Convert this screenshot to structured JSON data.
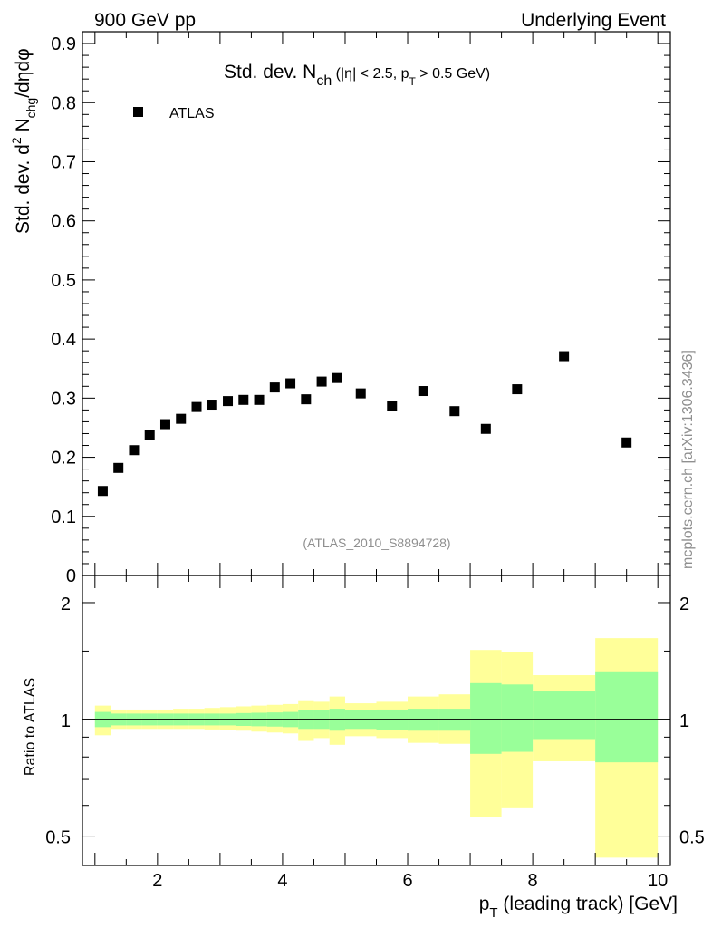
{
  "header": {
    "left": "900 GeV pp",
    "right": "Underlying Event"
  },
  "side_label": "mcplots.cern.ch [arXiv:1306.3436]",
  "chart_data": {
    "type": "scatter",
    "title": "Std. dev. N_ch (|η| < 2.5, p_T > 0.5 GeV)",
    "title_parts": {
      "main": "Std. dev. N",
      "main_sub": "ch",
      "paren_open": " (|η| < 2.5, p",
      "paren_sub": "T",
      "paren_close": " > 0.5 GeV)"
    },
    "ylabel": "Std. dev. d²N_chg/dηdφ",
    "ylabel_parts": {
      "a": "Std. dev. d",
      "sup": "2",
      "b": " N",
      "sub": "chg",
      "c": "/dηdφ"
    },
    "xlabel": "p_T (leading track) [GeV]",
    "xlabel_parts": {
      "a": "p",
      "sub": "T",
      "b": " (leading track) [GeV]"
    },
    "watermark": "(ATLAS_2010_S8894728)",
    "legend": [
      {
        "name": "ATLAS",
        "marker": "square",
        "color": "#000000"
      }
    ],
    "xlim": [
      0.8,
      10.2
    ],
    "ylim": [
      0,
      0.92
    ],
    "xticks": [
      2,
      4,
      6,
      8,
      10
    ],
    "yticks": [
      0,
      0.1,
      0.2,
      0.3,
      0.4,
      0.5,
      0.6,
      0.7,
      0.8,
      0.9
    ],
    "ytick_labels": [
      "0",
      "0.1",
      "0.2",
      "0.3",
      "0.4",
      "0.5",
      "0.6",
      "0.7",
      "0.8",
      "0.9"
    ],
    "series": [
      {
        "name": "ATLAS",
        "x": [
          1.125,
          1.375,
          1.625,
          1.875,
          2.125,
          2.375,
          2.625,
          2.875,
          3.125,
          3.375,
          3.625,
          3.875,
          4.125,
          4.375,
          4.625,
          4.875,
          5.25,
          5.75,
          6.25,
          6.75,
          7.25,
          7.75,
          8.5,
          9.5
        ],
        "y": [
          0.143,
          0.182,
          0.212,
          0.237,
          0.256,
          0.265,
          0.285,
          0.289,
          0.295,
          0.297,
          0.297,
          0.318,
          0.325,
          0.298,
          0.328,
          0.334,
          0.308,
          0.286,
          0.312,
          0.278,
          0.248,
          0.315,
          0.371,
          0.225
        ]
      }
    ],
    "ratio": {
      "ylabel": "Ratio to ATLAS",
      "yscale": "log",
      "ylim": [
        0.42,
        2.35
      ],
      "yticks": [
        0.5,
        1,
        2
      ],
      "ytick_labels": [
        "0.5",
        "1",
        "2"
      ],
      "reference": 1,
      "bin_edges": [
        1.0,
        1.25,
        1.5,
        1.75,
        2.0,
        2.25,
        2.5,
        2.75,
        3.0,
        3.25,
        3.5,
        3.75,
        4.0,
        4.25,
        4.5,
        4.75,
        5.0,
        5.5,
        6.0,
        6.5,
        7.0,
        7.5,
        8.0,
        9.0,
        10.0
      ],
      "stat_band": {
        "color": "#99ff99",
        "low": [
          0.955,
          0.965,
          0.965,
          0.965,
          0.965,
          0.965,
          0.965,
          0.965,
          0.965,
          0.962,
          0.96,
          0.958,
          0.955,
          0.945,
          0.945,
          0.935,
          0.945,
          0.94,
          0.935,
          0.935,
          0.815,
          0.825,
          0.885,
          0.775
        ],
        "high": [
          1.045,
          1.035,
          1.035,
          1.035,
          1.035,
          1.035,
          1.035,
          1.035,
          1.035,
          1.038,
          1.04,
          1.042,
          1.045,
          1.055,
          1.055,
          1.065,
          1.055,
          1.06,
          1.065,
          1.065,
          1.24,
          1.23,
          1.18,
          1.33
        ]
      },
      "total_band": {
        "color": "#ffff99",
        "low": [
          0.91,
          0.945,
          0.945,
          0.945,
          0.945,
          0.945,
          0.945,
          0.942,
          0.94,
          0.935,
          0.93,
          0.925,
          0.92,
          0.88,
          0.895,
          0.86,
          0.905,
          0.895,
          0.87,
          0.865,
          0.56,
          0.59,
          0.78,
          0.44
        ],
        "high": [
          1.085,
          1.06,
          1.06,
          1.06,
          1.06,
          1.065,
          1.065,
          1.07,
          1.075,
          1.08,
          1.085,
          1.09,
          1.095,
          1.12,
          1.11,
          1.145,
          1.1,
          1.11,
          1.145,
          1.16,
          1.51,
          1.49,
          1.3,
          1.62
        ]
      }
    }
  }
}
